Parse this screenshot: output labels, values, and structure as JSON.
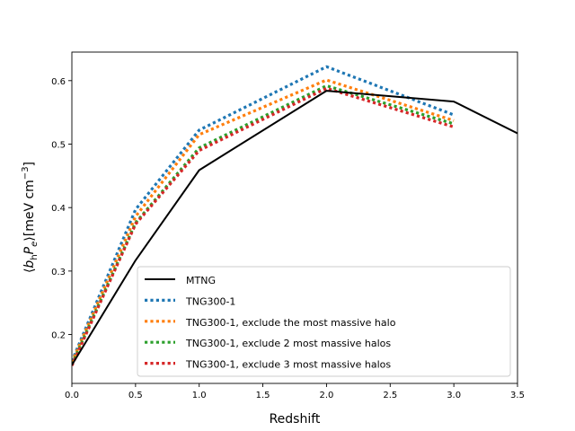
{
  "chart_data": {
    "type": "line",
    "xlabel": "Redshift",
    "ylabel_parts": {
      "open": "⟨",
      "b": "b",
      "b_sub": "h",
      "p": "P",
      "p_sub": "e",
      "close": "⟩",
      "unit_open": "[meV cm",
      "unit_exp": "−3",
      "unit_close": "]"
    },
    "xlim": [
      0,
      3.5
    ],
    "ylim": [
      0.123,
      0.645
    ],
    "xticks": [
      "0.0",
      "0.5",
      "1.0",
      "1.5",
      "2.0",
      "2.5",
      "3.0",
      "3.5"
    ],
    "yticks": [
      "0.2",
      "0.3",
      "0.4",
      "0.5",
      "0.6"
    ],
    "grid": false,
    "legend_position": "lower-right",
    "series": [
      {
        "name": "MTNG",
        "color": "#000000",
        "style": "solid",
        "x": [
          0,
          0.5,
          1.0,
          2.0,
          3.0,
          3.5
        ],
        "y": [
          0.152,
          0.317,
          0.459,
          0.584,
          0.567,
          0.517
        ]
      },
      {
        "name": "TNG300-1",
        "color": "#1f77b4",
        "style": "dotted",
        "x": [
          0,
          0.5,
          1.0,
          2.0,
          3.0
        ],
        "y": [
          0.158,
          0.397,
          0.522,
          0.622,
          0.546
        ]
      },
      {
        "name": "TNG300-1, exclude the most massive halo",
        "color": "#ff7f0e",
        "style": "dotted",
        "x": [
          0,
          0.5,
          1.0,
          2.0,
          3.0
        ],
        "y": [
          0.156,
          0.386,
          0.515,
          0.601,
          0.537
        ]
      },
      {
        "name": "TNG300-1, exclude 2 most massive halos",
        "color": "#2ca02c",
        "style": "dotted",
        "x": [
          0,
          0.5,
          1.0,
          2.0,
          3.0
        ],
        "y": [
          0.153,
          0.376,
          0.494,
          0.592,
          0.532
        ]
      },
      {
        "name": "TNG300-1, exclude 3 most massive halos",
        "color": "#d62728",
        "style": "dotted",
        "x": [
          0,
          0.5,
          1.0,
          2.0,
          3.0
        ],
        "y": [
          0.151,
          0.374,
          0.49,
          0.588,
          0.527
        ]
      }
    ]
  }
}
